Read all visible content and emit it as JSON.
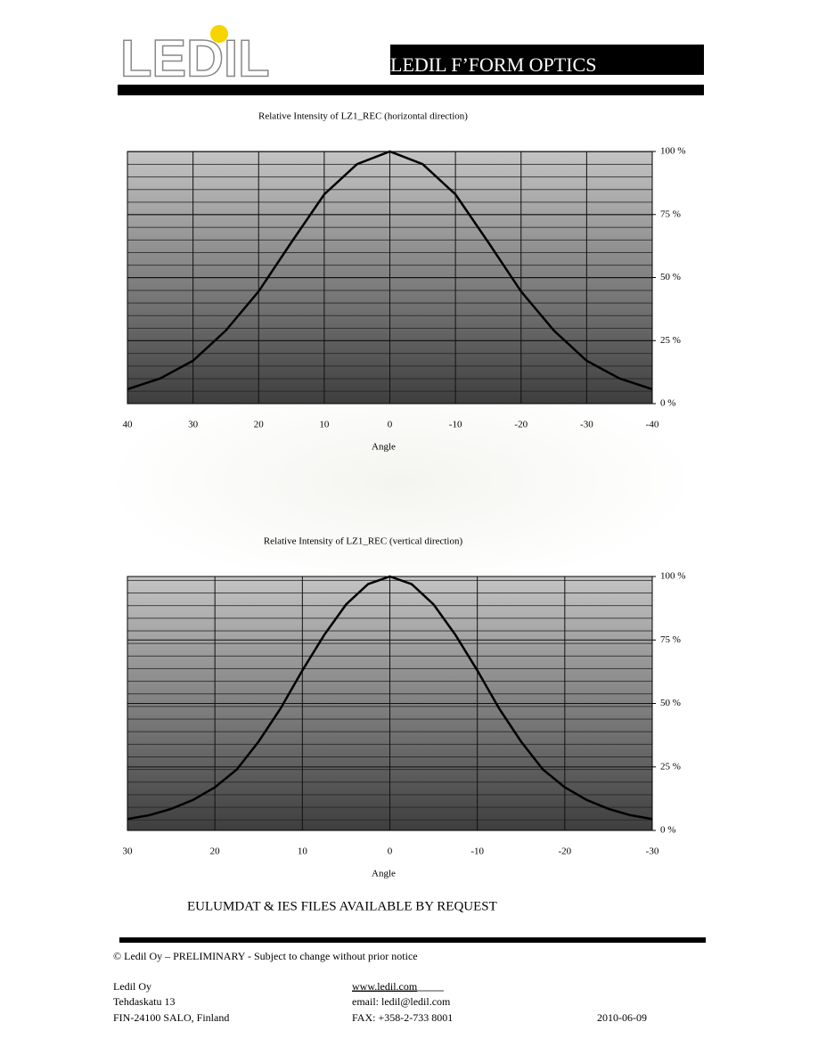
{
  "header": {
    "logo": "LEDIL",
    "title": "LEDIL F’FORM OPTICS"
  },
  "chart_data": [
    {
      "type": "line",
      "title": "Relative Intensity of LZ1_REC (horizontal direction)",
      "xlabel": "Angle",
      "x": [
        40,
        35,
        30,
        25,
        20,
        15,
        10,
        5,
        0,
        -5,
        -10,
        -15,
        -20,
        -25,
        -30,
        -35,
        -40
      ],
      "values": [
        5.7,
        10,
        17,
        29,
        44.5,
        64,
        83,
        95,
        100,
        95,
        83,
        64,
        44.5,
        29,
        17,
        10,
        5.7
      ],
      "color": "#000000",
      "xlim": [
        40,
        -40
      ],
      "xticks": [
        40,
        30,
        20,
        10,
        0,
        -10,
        -20,
        -30,
        -40
      ],
      "ylim": [
        0,
        100
      ],
      "yticks": [
        {
          "value": 0,
          "label": "0 %"
        },
        {
          "value": 25,
          "label": "25 %"
        },
        {
          "value": 50,
          "label": "50 %"
        },
        {
          "value": 75,
          "label": "75 %"
        },
        {
          "value": 100,
          "label": "100 %"
        }
      ],
      "grid": true
    },
    {
      "type": "line",
      "title": "Relative Intensity of LZ1_REC (vertical direction)",
      "xlabel": "Angle",
      "x": [
        30,
        27.5,
        25,
        22.5,
        20,
        17.5,
        15,
        12.5,
        10,
        7.5,
        5,
        2.5,
        0,
        -2.5,
        -5,
        -7.5,
        -10,
        -12.5,
        -15,
        -17.5,
        -20,
        -22.5,
        -25,
        -27.5,
        -30
      ],
      "values": [
        4.5,
        6,
        8.5,
        12,
        17,
        24,
        35,
        48,
        63,
        77,
        89,
        97,
        100,
        97,
        89,
        77,
        63,
        48,
        35,
        24,
        17,
        12,
        8.5,
        6,
        4.5
      ],
      "color": "#000000",
      "xlim": [
        30,
        -30
      ],
      "xticks": [
        30,
        20,
        10,
        0,
        -10,
        -20,
        -30
      ],
      "ylim": [
        0,
        100
      ],
      "yticks": [
        {
          "value": 0,
          "label": "0 %"
        },
        {
          "value": 25,
          "label": "25 %"
        },
        {
          "value": 50,
          "label": "50 %"
        },
        {
          "value": 75,
          "label": "75 %"
        },
        {
          "value": 100,
          "label": "100 %"
        }
      ],
      "grid": true
    }
  ],
  "notice": "EULUMDAT & IES FILES AVAILABLE BY REQUEST",
  "footer": {
    "copyright": "© Ledil Oy – PRELIMINARY - Subject to change without prior notice",
    "company": "Ledil Oy",
    "street": "Tehdaskatu 13",
    "city": "FIN-24100  SALO, Finland",
    "web": "www.ledil.com",
    "email": "email: ledil@ledil.com",
    "fax": "FAX: +358-2-733 8001",
    "date": "2010-06-09"
  }
}
